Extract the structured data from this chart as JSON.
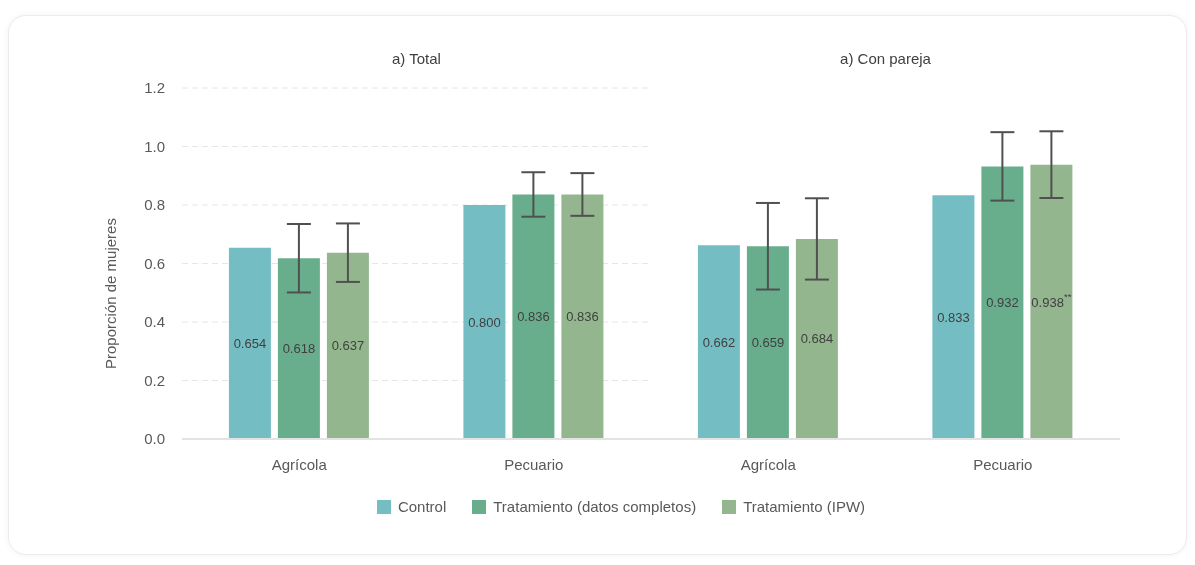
{
  "chart_data": [
    {
      "type": "bar",
      "title": "a) Total",
      "ylabel": "Proporción de mujeres",
      "categories": [
        "Agrícola",
        "Pecuario"
      ],
      "series": [
        {
          "name": "Control",
          "color": "#74bec3",
          "values": [
            0.654,
            0.8
          ],
          "value_labels": [
            "0.654",
            "0.800"
          ]
        },
        {
          "name": "Tratamiento (datos completos)",
          "color": "#68ae8c",
          "values": [
            0.618,
            0.836
          ],
          "value_labels": [
            "0.618",
            "0.836"
          ],
          "errors": [
            0.117,
            0.076
          ]
        },
        {
          "name": "Tratamiento (IPW)",
          "color": "#94b68f",
          "values": [
            0.637,
            0.836
          ],
          "value_labels": [
            "0.637",
            "0.836"
          ],
          "errors": [
            0.1,
            0.073
          ]
        }
      ],
      "ylim": [
        0,
        1.2
      ],
      "yticks": [
        {
          "value": 0,
          "label": "0.0"
        },
        0.2,
        0.4,
        0.6,
        0.8,
        {
          "value": 1,
          "label": "1.0"
        },
        1.2
      ],
      "grid": "y",
      "legend": "bottom"
    },
    {
      "type": "bar",
      "title": "a) Con pareja",
      "categories": [
        "Agrícola",
        "Pecuario"
      ],
      "series": [
        {
          "name": "Control",
          "color": "#74bec3",
          "values": [
            0.662,
            0.833
          ],
          "value_labels": [
            "0.662",
            "0.833"
          ]
        },
        {
          "name": "Tratamiento (datos completos)",
          "color": "#68ae8c",
          "values": [
            0.659,
            0.932
          ],
          "value_labels": [
            "0.659",
            "0.932"
          ],
          "errors": [
            0.148,
            0.117
          ]
        },
        {
          "name": "Tratamiento (IPW)",
          "color": "#94b68f",
          "values": [
            0.684,
            0.938
          ],
          "value_labels": [
            "0.684",
            "0.938$^{**}$"
          ],
          "errors": [
            0.139,
            0.114
          ]
        }
      ],
      "ylim": [
        0,
        1.2
      ],
      "yticks": [
        0,
        0.2,
        0.4,
        0.6,
        0.8,
        1,
        1.2
      ],
      "grid": "y",
      "tick_labels": "x"
    }
  ]
}
